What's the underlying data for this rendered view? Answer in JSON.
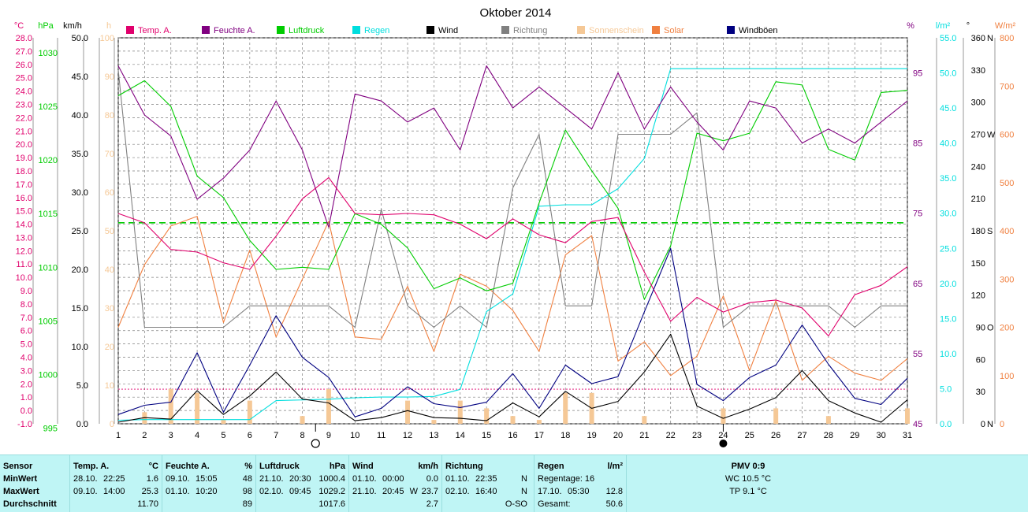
{
  "title": "Oktober 2014",
  "axes": {
    "temp": {
      "unit": "°C",
      "min": -1,
      "max": 28,
      "step": 1
    },
    "pressure": {
      "unit": "hPa",
      "ticks": [
        995,
        1000,
        1005,
        1010,
        1015,
        1020,
        1025,
        1030
      ],
      "min": 995.4,
      "max": 1031.4
    },
    "wind": {
      "unit": "km/h",
      "min": 0,
      "max": 50,
      "step": 5
    },
    "sun": {
      "unit": "h",
      "ticks": [
        0,
        10,
        20,
        30,
        40,
        50,
        60,
        70,
        80,
        90,
        100
      ]
    },
    "humidity": {
      "unit": "%",
      "ticks": [
        45,
        55,
        65,
        75,
        85,
        95
      ]
    },
    "rain": {
      "unit": "l/m²",
      "min": 0,
      "max": 55,
      "step": 5
    },
    "direction": {
      "unit": "°",
      "ticks": [
        {
          "v": 0,
          "l": "0"
        },
        {
          "v": 30,
          "l": "30"
        },
        {
          "v": 60,
          "l": "60"
        },
        {
          "v": 90,
          "l": "90"
        },
        {
          "v": 120,
          "l": "120"
        },
        {
          "v": 150,
          "l": "150"
        },
        {
          "v": 180,
          "l": "180"
        },
        {
          "v": 210,
          "l": "210"
        },
        {
          "v": 240,
          "l": "240"
        },
        {
          "v": 270,
          "l": "270"
        },
        {
          "v": 300,
          "l": "300"
        },
        {
          "v": 330,
          "l": "330"
        },
        {
          "v": 360,
          "l": "360"
        }
      ],
      "compass": [
        {
          "v": 0,
          "l": "N"
        },
        {
          "v": 90,
          "l": "O"
        },
        {
          "v": 180,
          "l": "S"
        },
        {
          "v": 270,
          "l": "W"
        },
        {
          "v": 360,
          "l": "N"
        }
      ]
    },
    "solar": {
      "unit": "W/m²",
      "min": 0,
      "max": 800,
      "step": 100
    }
  },
  "colors": {
    "temp": "#e0006c",
    "humidity": "#800080",
    "pressure": "#00cc00",
    "rain": "#00dede",
    "wind": "#000000",
    "direction": "#808080",
    "sunshine": "#f5c896",
    "solar": "#f08040",
    "gusts": "#000080"
  },
  "legend": [
    {
      "label": "Temp. A.",
      "color": "#e0006c"
    },
    {
      "label": "Feuchte A.",
      "color": "#800080"
    },
    {
      "label": "Luftdruck",
      "color": "#00cc00"
    },
    {
      "label": "Regen",
      "color": "#00dede"
    },
    {
      "label": "Wind",
      "color": "#000000"
    },
    {
      "label": "Richtung",
      "color": "#808080"
    },
    {
      "label": "Sonnenschein",
      "color": "#f5c896"
    },
    {
      "label": "Solar",
      "color": "#f08040"
    },
    {
      "label": "Windböen",
      "color": "#000080"
    }
  ],
  "chart_data": {
    "type": "line",
    "title": "Oktober 2014",
    "x": [
      1,
      2,
      3,
      4,
      5,
      6,
      7,
      8,
      9,
      10,
      11,
      12,
      13,
      14,
      15,
      16,
      17,
      18,
      19,
      20,
      21,
      22,
      23,
      24,
      25,
      26,
      27,
      28,
      29,
      30,
      31
    ],
    "series": [
      {
        "name": "Temp. A.",
        "unit": "°C",
        "values": [
          14.8,
          14.1,
          12.1,
          11.9,
          11.1,
          10.6,
          13.1,
          15.9,
          17.5,
          14.8,
          14.7,
          14.8,
          14.7,
          14.0,
          12.9,
          14.4,
          13.2,
          12.6,
          14.2,
          14.5,
          10.4,
          6.7,
          8.5,
          7.4,
          8.1,
          8.3,
          7.7,
          5.6,
          8.7,
          9.4,
          10.8
        ]
      },
      {
        "name": "Feuchte A.",
        "unit": "%",
        "values": [
          96,
          89,
          86,
          77,
          80,
          84,
          91,
          84,
          73,
          92,
          91,
          88,
          90,
          84,
          96,
          90,
          93,
          90,
          87,
          95,
          87,
          93,
          88,
          84,
          91,
          90,
          85,
          87,
          85,
          88,
          91
        ]
      },
      {
        "name": "Luftdruck",
        "unit": "hPa",
        "values": [
          1026.0,
          1027.4,
          1025.0,
          1018.5,
          1016.5,
          1012.5,
          1009.8,
          1010.0,
          1009.8,
          1015.0,
          1014.0,
          1011.8,
          1008.0,
          1009.0,
          1007.8,
          1008.5,
          1016.0,
          1022.8,
          1019.0,
          1015.5,
          1007.0,
          1012.0,
          1022.5,
          1021.8,
          1022.5,
          1027.3,
          1027.0,
          1021.0,
          1020.0,
          1026.3,
          1026.5
        ]
      },
      {
        "name": "Regen",
        "unit": "l/m²",
        "values": [
          0.5,
          0.6,
          0.6,
          0.6,
          0.6,
          0.6,
          3.3,
          3.4,
          3.5,
          3.7,
          3.8,
          3.8,
          3.9,
          4.9,
          16.0,
          18.5,
          31.0,
          31.2,
          31.2,
          33.5,
          37.8,
          50.6,
          50.6,
          50.6,
          50.6,
          50.6,
          50.6,
          50.6,
          50.6,
          50.6,
          50.6
        ]
      },
      {
        "name": "Wind",
        "unit": "km/h",
        "values": [
          0.2,
          0.8,
          0.6,
          4.3,
          1.2,
          3.6,
          6.7,
          3.2,
          2.7,
          0.4,
          0.8,
          1.7,
          0.8,
          0.7,
          0.4,
          2.7,
          0.9,
          4.2,
          2.0,
          2.9,
          6.7,
          11.6,
          2.3,
          0.7,
          1.9,
          3.4,
          6.9,
          3.0,
          1.4,
          0.2,
          3.1
        ]
      },
      {
        "name": "Richtung",
        "unit": "°",
        "values": [
          330,
          90,
          90,
          90,
          90,
          110,
          110,
          110,
          110,
          90,
          200,
          110,
          90,
          110,
          90,
          220,
          270,
          110,
          110,
          270,
          270,
          270,
          290,
          90,
          110,
          110,
          110,
          110,
          90,
          110,
          110
        ]
      },
      {
        "name": "Sonnenschein",
        "unit": "h",
        "values": [
          0,
          3,
          9,
          8,
          1,
          6,
          0,
          2,
          9,
          0,
          0,
          6,
          1,
          6,
          4,
          2,
          1,
          8,
          8,
          0,
          2,
          0,
          0,
          4,
          0,
          4,
          0,
          2,
          0,
          0,
          4
        ]
      },
      {
        "name": "Solar",
        "unit": "W/m²",
        "values": [
          200,
          330,
          410,
          430,
          210,
          360,
          180,
          300,
          420,
          180,
          175,
          285,
          150,
          310,
          285,
          235,
          150,
          350,
          390,
          130,
          170,
          100,
          140,
          265,
          110,
          255,
          90,
          140,
          105,
          90,
          135
        ]
      },
      {
        "name": "Windböen",
        "unit": "km/h",
        "values": [
          1.2,
          2.4,
          2.8,
          9.2,
          1.5,
          7.6,
          14.0,
          8.6,
          6.0,
          0.9,
          2.0,
          4.8,
          2.6,
          2.1,
          2.8,
          6.5,
          2.0,
          7.6,
          5.2,
          6.1,
          14.5,
          22.7,
          5.1,
          3.0,
          6.0,
          7.6,
          12.8,
          7.7,
          3.3,
          2.5,
          5.9
        ]
      }
    ],
    "reference_line": {
      "axis": "temp",
      "value": 14.1,
      "color": "#00cc00",
      "style": "dashed"
    },
    "moon_phases": [
      {
        "day": 8.5,
        "phase": "full"
      },
      {
        "day": 24,
        "phase": "new"
      }
    ]
  },
  "stats": {
    "sensor": {
      "header": "Sensor",
      "rows": [
        "MinWert",
        "MaxWert",
        "Durchschnitt"
      ]
    },
    "temp": {
      "header": "Temp. A.",
      "unit": "°C",
      "min": {
        "date": "28.10.",
        "time": "22:25",
        "value": "1.6"
      },
      "max": {
        "date": "09.10.",
        "time": "14:00",
        "value": "25.3"
      },
      "avg": "11.70"
    },
    "humidity": {
      "header": "Feuchte A.",
      "unit": "%",
      "min": {
        "date": "09.10.",
        "time": "15:05",
        "value": "48"
      },
      "max": {
        "date": "01.10.",
        "time": "10:20",
        "value": "98"
      },
      "avg": "89"
    },
    "pressure": {
      "header": "Luftdruck",
      "unit": "hPa",
      "min": {
        "date": "21.10.",
        "time": "20:30",
        "value": "1000.4"
      },
      "max": {
        "date": "02.10.",
        "time": "09:45",
        "value": "1029.2"
      },
      "avg": "1017.6"
    },
    "wind": {
      "header": "Wind",
      "unit": "km/h",
      "min": {
        "date": "01.10.",
        "time": "00:00",
        "value": "0.0"
      },
      "max": {
        "date": "21.10.",
        "time": "20:45",
        "dir": "W",
        "value": "23.7"
      },
      "avg": "2.7"
    },
    "direction": {
      "header": "Richtung",
      "min": {
        "date": "01.10.",
        "time": "22:35",
        "value": "N"
      },
      "max": {
        "date": "02.10.",
        "time": "16:40",
        "value": "N"
      },
      "avg": "O-SO"
    },
    "rain": {
      "header": "Regen",
      "unit": "l/m²",
      "days": "Regentage: 16",
      "max": {
        "date": "17.10.",
        "time": "05:30",
        "value": "12.8"
      },
      "total_label": "Gesamt:",
      "total": "50.6"
    },
    "pmv": {
      "header": "PMV 0:9",
      "wc": "WC 10.5 °C",
      "tp": "TP 9.1 °C"
    }
  }
}
